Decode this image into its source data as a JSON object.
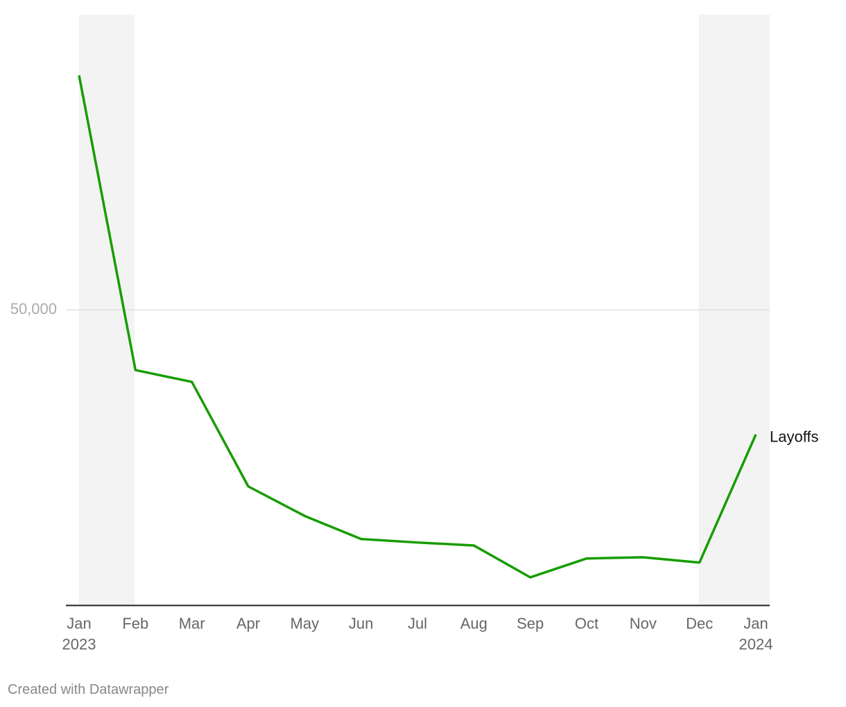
{
  "chart_data": {
    "type": "line",
    "categories": [
      "Jan 2023",
      "Feb",
      "Mar",
      "Apr",
      "May",
      "Jun",
      "Jul",
      "Aug",
      "Sep",
      "Oct",
      "Nov",
      "Dec",
      "Jan 2024"
    ],
    "series": [
      {
        "name": "Layoffs",
        "color": "#179c00",
        "values": [
          89700,
          39800,
          37800,
          20100,
          15100,
          11200,
          10600,
          10100,
          4700,
          7900,
          8100,
          7200,
          28900
        ]
      }
    ],
    "ylim": [
      0,
      100000
    ],
    "yticks": [
      {
        "value": 50000,
        "label": "50,000"
      }
    ],
    "grid": true,
    "footer": "Created with Datawrapper"
  }
}
